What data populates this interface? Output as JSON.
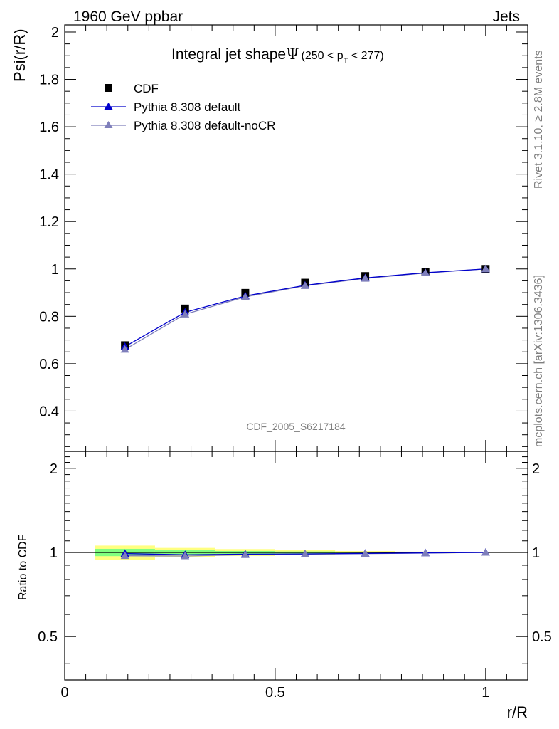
{
  "header": {
    "left": "1960 GeV ppbar",
    "right": "Jets"
  },
  "side_labels": {
    "rivet": "Rivet 3.1.10, ≥ 2.8M events",
    "mcplots": "mcplots.cern.ch [arXiv:1306.3436]"
  },
  "watermark": "CDF_2005_S6217184",
  "chart_data": {
    "type": "line",
    "title": "Integral jet shape",
    "title_symbol": "Ψ",
    "title_range_open": "(250 < p",
    "title_range_sub": "T",
    "title_range_close": " < 277)",
    "xlabel": "r/R",
    "ylabel": "Psi(r/R)",
    "ratio_ylabel": "Ratio to CDF",
    "xlim": [
      0,
      1.1
    ],
    "ylim": [
      0.23,
      2.03
    ],
    "ratio_ylim": [
      0.35,
      2.3
    ],
    "ratio_log": true,
    "x_ticks": [
      {
        "value": 0,
        "label": "0"
      },
      {
        "value": 0.5,
        "label": "0.5"
      },
      {
        "value": 1,
        "label": "1"
      }
    ],
    "y_ticks": [
      {
        "value": 0.4,
        "label": "0.4"
      },
      {
        "value": 0.6,
        "label": "0.6"
      },
      {
        "value": 0.8,
        "label": "0.8"
      },
      {
        "value": 1.0,
        "label": "1"
      },
      {
        "value": 1.2,
        "label": "1.2"
      },
      {
        "value": 1.4,
        "label": "1.4"
      },
      {
        "value": 1.6,
        "label": "1.6"
      },
      {
        "value": 1.8,
        "label": "1.8"
      },
      {
        "value": 2.0,
        "label": "2"
      }
    ],
    "ratio_ticks": [
      {
        "value": 0.5,
        "label": "0.5"
      },
      {
        "value": 1,
        "label": "1"
      },
      {
        "value": 2,
        "label": "2"
      }
    ],
    "x": [
      0.143,
      0.286,
      0.429,
      0.571,
      0.714,
      0.857,
      1.0
    ],
    "x_bin_edges": [
      0.0715,
      0.2145,
      0.3575,
      0.5,
      0.6425,
      0.7855,
      0.9285,
      1.0715
    ],
    "series": [
      {
        "name": "CDF",
        "marker": "square",
        "color": "#000000",
        "values": [
          0.678,
          0.833,
          0.899,
          0.942,
          0.97,
          0.988,
          1.0
        ],
        "ratio": [
          1,
          1,
          1,
          1,
          1,
          1,
          1
        ]
      },
      {
        "name": "Pythia 8.308 default",
        "marker": "triangle",
        "color": "#0000cc",
        "values": [
          0.672,
          0.817,
          0.886,
          0.931,
          0.962,
          0.984,
          1.0
        ],
        "ratio": [
          0.991,
          0.981,
          0.986,
          0.988,
          0.992,
          0.996,
          1.0
        ]
      },
      {
        "name": "Pythia 8.308 default-noCR",
        "marker": "triangle",
        "color": "#7f7fbb",
        "values": [
          0.66,
          0.809,
          0.882,
          0.929,
          0.96,
          0.983,
          1.0
        ],
        "ratio": [
          0.973,
          0.971,
          0.981,
          0.986,
          0.99,
          0.995,
          1.0
        ]
      }
    ],
    "ratio_bands": {
      "outer_color": "#ffff80",
      "inner_color": "#80ff80",
      "outer": [
        0.058,
        0.038,
        0.028,
        0.018,
        0.012,
        0.007,
        0.003
      ],
      "inner": [
        0.03,
        0.018,
        0.012,
        0.008,
        0.005,
        0.003,
        0.001
      ]
    }
  }
}
